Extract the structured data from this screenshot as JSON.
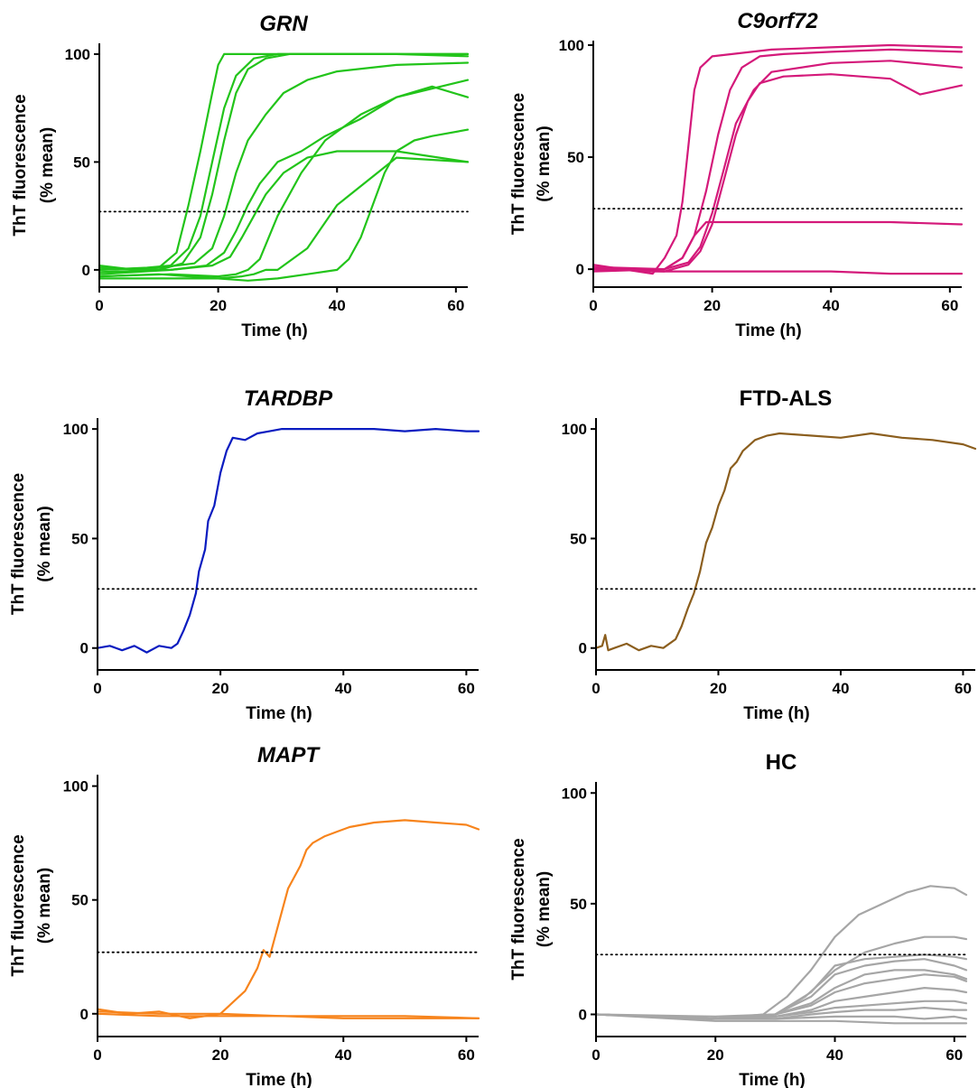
{
  "chart_data": [
    {
      "type": "line",
      "title": "GRN",
      "title_italic": true,
      "xlabel": "Time (h)",
      "ylabel": [
        "ThT fluorescence",
        "(% mean)"
      ],
      "xlim": [
        0,
        62
      ],
      "ylim": [
        -8,
        105
      ],
      "xticks": [
        0,
        20,
        40,
        60
      ],
      "yticks": [
        0,
        50,
        100
      ],
      "threshold": 27,
      "color": "#22c41a",
      "series": [
        {
          "x": [
            0,
            6,
            10,
            13,
            15,
            17,
            19,
            20,
            21,
            24,
            30,
            40,
            50,
            62
          ],
          "y": [
            2,
            0,
            1,
            8,
            30,
            55,
            82,
            95,
            100,
            100,
            100,
            100,
            100,
            100
          ]
        },
        {
          "x": [
            0,
            8,
            12,
            15,
            17,
            19,
            21,
            23,
            26,
            30,
            40,
            50,
            62
          ],
          "y": [
            0,
            1,
            2,
            10,
            25,
            50,
            75,
            90,
            98,
            100,
            100,
            100,
            99
          ]
        },
        {
          "x": [
            0,
            10,
            14,
            17,
            19,
            21,
            23,
            25,
            28,
            32,
            40,
            50,
            62
          ],
          "y": [
            1,
            0,
            3,
            15,
            35,
            60,
            82,
            93,
            98,
            100,
            100,
            100,
            100
          ]
        },
        {
          "x": [
            0,
            10,
            16,
            19,
            21,
            23,
            25,
            28,
            31,
            35,
            40,
            50,
            62
          ],
          "y": [
            0,
            1,
            3,
            10,
            25,
            45,
            60,
            72,
            82,
            88,
            92,
            95,
            96
          ]
        },
        {
          "x": [
            0,
            12,
            18,
            21,
            23,
            25,
            27,
            30,
            34,
            38,
            44,
            50,
            62
          ],
          "y": [
            -2,
            0,
            2,
            8,
            18,
            30,
            40,
            50,
            55,
            62,
            70,
            80,
            88
          ]
        },
        {
          "x": [
            0,
            12,
            19,
            22,
            24,
            26,
            28,
            31,
            35,
            40,
            50,
            62
          ],
          "y": [
            -1,
            0,
            2,
            6,
            15,
            25,
            35,
            45,
            52,
            55,
            55,
            50
          ]
        },
        {
          "x": [
            0,
            12,
            20,
            23,
            25,
            27,
            30,
            34,
            38,
            44,
            50,
            56,
            62
          ],
          "y": [
            -3,
            -2,
            -3,
            -2,
            0,
            5,
            25,
            45,
            60,
            72,
            80,
            85,
            80
          ]
        },
        {
          "x": [
            0,
            10,
            20,
            24,
            26,
            28,
            30,
            35,
            40,
            50,
            62
          ],
          "y": [
            -3,
            -2,
            -4,
            -3,
            -2,
            0,
            0,
            10,
            30,
            52,
            50
          ]
        },
        {
          "x": [
            0,
            20,
            25,
            30,
            35,
            40,
            42,
            44,
            46,
            48,
            50,
            53,
            56,
            62
          ],
          "y": [
            -4,
            -4,
            -5,
            -4,
            -2,
            0,
            5,
            15,
            30,
            45,
            55,
            60,
            62,
            65
          ]
        }
      ]
    },
    {
      "type": "line",
      "title": "C9orf72",
      "title_italic": true,
      "xlabel": "Time (h)",
      "ylabel": [
        "ThT fluorescence",
        "(% mean)"
      ],
      "xlim": [
        0,
        62
      ],
      "ylim": [
        -8,
        102
      ],
      "xticks": [
        0,
        20,
        40,
        60
      ],
      "yticks": [
        0,
        50,
        100
      ],
      "threshold": 27,
      "color": "#d4197a",
      "series": [
        {
          "x": [
            0,
            10,
            12,
            14,
            15,
            16,
            17,
            18,
            20,
            30,
            40,
            50,
            62
          ],
          "y": [
            2,
            -2,
            5,
            15,
            30,
            55,
            80,
            90,
            95,
            98,
            99,
            100,
            99
          ]
        },
        {
          "x": [
            0,
            12,
            15,
            17,
            19,
            21,
            23,
            25,
            28,
            32,
            40,
            50,
            62
          ],
          "y": [
            0,
            0,
            5,
            15,
            35,
            60,
            80,
            90,
            95,
            96,
            97,
            98,
            97
          ]
        },
        {
          "x": [
            0,
            12,
            16,
            18,
            20,
            22,
            24,
            27,
            30,
            40,
            50,
            62
          ],
          "y": [
            -1,
            0,
            3,
            10,
            25,
            45,
            65,
            80,
            88,
            92,
            93,
            90
          ]
        },
        {
          "x": [
            0,
            12,
            16,
            18,
            20,
            22,
            24,
            26,
            28,
            32,
            40,
            50,
            55,
            62
          ],
          "y": [
            0,
            -1,
            2,
            8,
            20,
            40,
            60,
            75,
            83,
            86,
            87,
            85,
            78,
            82
          ]
        },
        {
          "x": [
            0,
            12,
            15,
            17,
            19,
            22,
            30,
            40,
            50,
            62
          ],
          "y": [
            1,
            0,
            5,
            15,
            21,
            21,
            21,
            21,
            21,
            20
          ]
        },
        {
          "x": [
            0,
            10,
            20,
            30,
            40,
            50,
            62
          ],
          "y": [
            1,
            -1,
            -1,
            -1,
            -1,
            -2,
            -2
          ]
        }
      ]
    },
    {
      "type": "line",
      "title": "TARDBP",
      "title_italic": true,
      "xlabel": "Time (h)",
      "ylabel": [
        "ThT fluorescence",
        "(% mean)"
      ],
      "xlim": [
        0,
        62
      ],
      "ylim": [
        -10,
        105
      ],
      "xticks": [
        0,
        20,
        40,
        60
      ],
      "yticks": [
        0,
        50,
        100
      ],
      "threshold": 27,
      "color": "#0a1cc0",
      "series": [
        {
          "x": [
            0,
            2,
            4,
            6,
            8,
            10,
            12,
            13,
            14,
            15,
            16,
            16.5,
            17,
            17.5,
            18,
            19,
            20,
            21,
            22,
            24,
            26,
            28,
            30,
            35,
            40,
            45,
            50,
            55,
            60,
            62
          ],
          "y": [
            0,
            1,
            -1,
            1,
            -2,
            1,
            0,
            2,
            8,
            15,
            25,
            35,
            40,
            45,
            58,
            65,
            80,
            90,
            96,
            95,
            98,
            99,
            100,
            100,
            100,
            100,
            99,
            100,
            99,
            99
          ]
        }
      ]
    },
    {
      "type": "line",
      "title": "FTD-ALS",
      "title_italic": false,
      "xlabel": "Time (h)",
      "ylabel": [
        "",
        ""
      ],
      "xlim": [
        0,
        62
      ],
      "ylim": [
        -10,
        105
      ],
      "xticks": [
        0,
        20,
        40,
        60
      ],
      "yticks": [
        0,
        50,
        100
      ],
      "threshold": 27,
      "color": "#8b5e1e",
      "series": [
        {
          "x": [
            0,
            1,
            1.5,
            2,
            3,
            5,
            7,
            9,
            11,
            13,
            14,
            15,
            16,
            17,
            18,
            19,
            20,
            21,
            22,
            23,
            24,
            26,
            28,
            30,
            35,
            40,
            45,
            50,
            55,
            60,
            62
          ],
          "y": [
            0,
            1,
            6,
            -1,
            0,
            2,
            -1,
            1,
            0,
            4,
            10,
            18,
            25,
            35,
            48,
            55,
            65,
            72,
            82,
            85,
            90,
            95,
            97,
            98,
            97,
            96,
            98,
            96,
            95,
            93,
            91
          ]
        }
      ]
    },
    {
      "type": "line",
      "title": "MAPT",
      "title_italic": true,
      "xlabel": "Time (h)",
      "ylabel": [
        "ThT fluorescence",
        "(% mean)"
      ],
      "xlim": [
        0,
        62
      ],
      "ylim": [
        -10,
        105
      ],
      "xticks": [
        0,
        20,
        40,
        60
      ],
      "yticks": [
        0,
        50,
        100
      ],
      "threshold": 27,
      "color": "#f7841c",
      "series": [
        {
          "x": [
            0,
            5,
            10,
            15,
            20,
            22,
            24,
            26,
            27,
            28,
            29,
            30,
            31,
            32,
            33,
            34,
            35,
            37,
            39,
            41,
            45,
            50,
            55,
            60,
            62
          ],
          "y": [
            2,
            0,
            1,
            -2,
            0,
            5,
            10,
            20,
            28,
            25,
            35,
            45,
            55,
            60,
            65,
            72,
            75,
            78,
            80,
            82,
            84,
            85,
            84,
            83,
            81
          ]
        },
        {
          "x": [
            0,
            10,
            20,
            30,
            40,
            50,
            62
          ],
          "y": [
            0,
            -1,
            -1,
            -1,
            -2,
            -2,
            -2
          ]
        },
        {
          "x": [
            0,
            10,
            20,
            30,
            40,
            50,
            62
          ],
          "y": [
            1,
            0,
            0,
            -1,
            -1,
            -1,
            -2
          ]
        }
      ]
    },
    {
      "type": "line",
      "title": "HC",
      "title_italic": false,
      "xlabel": "Time (h)",
      "ylabel": [
        "ThT fluorescence",
        "(% mean)"
      ],
      "xlim": [
        0,
        62
      ],
      "ylim": [
        -10,
        105
      ],
      "xticks": [
        0,
        20,
        40,
        60
      ],
      "yticks": [
        0,
        50,
        100
      ],
      "threshold": 27,
      "color": "#a6a6a6",
      "series": [
        {
          "x": [
            0,
            20,
            28,
            32,
            36,
            40,
            44,
            48,
            52,
            56,
            60,
            62
          ],
          "y": [
            0,
            -2,
            0,
            8,
            20,
            35,
            45,
            50,
            55,
            58,
            57,
            54
          ]
        },
        {
          "x": [
            0,
            20,
            30,
            35,
            40,
            45,
            50,
            55,
            60,
            62
          ],
          "y": [
            0,
            -2,
            0,
            8,
            20,
            28,
            32,
            35,
            35,
            34
          ]
        },
        {
          "x": [
            0,
            20,
            30,
            36,
            40,
            45,
            50,
            55,
            60,
            62
          ],
          "y": [
            0,
            -2,
            0,
            10,
            22,
            25,
            26,
            27,
            26,
            25
          ]
        },
        {
          "x": [
            0,
            20,
            30,
            36,
            40,
            45,
            50,
            55,
            60,
            62
          ],
          "y": [
            0,
            -2,
            0,
            8,
            18,
            22,
            24,
            25,
            22,
            20
          ]
        },
        {
          "x": [
            0,
            20,
            30,
            36,
            40,
            45,
            50,
            55,
            60,
            62
          ],
          "y": [
            0,
            -1,
            0,
            5,
            12,
            18,
            20,
            20,
            18,
            16
          ]
        },
        {
          "x": [
            0,
            20,
            30,
            36,
            40,
            45,
            50,
            55,
            60,
            62
          ],
          "y": [
            0,
            -2,
            0,
            4,
            10,
            14,
            16,
            18,
            17,
            15
          ]
        },
        {
          "x": [
            0,
            20,
            30,
            36,
            40,
            45,
            50,
            55,
            60,
            62
          ],
          "y": [
            0,
            -2,
            -1,
            2,
            6,
            8,
            10,
            12,
            11,
            10
          ]
        },
        {
          "x": [
            0,
            20,
            30,
            36,
            40,
            45,
            50,
            55,
            60,
            62
          ],
          "y": [
            0,
            -2,
            -1,
            1,
            3,
            4,
            5,
            6,
            6,
            5
          ]
        },
        {
          "x": [
            0,
            20,
            30,
            36,
            40,
            45,
            50,
            55,
            60,
            62
          ],
          "y": [
            0,
            -2,
            -2,
            0,
            1,
            2,
            2,
            3,
            2,
            2
          ]
        },
        {
          "x": [
            0,
            20,
            30,
            40,
            50,
            55,
            60,
            62
          ],
          "y": [
            0,
            -2,
            -2,
            -1,
            -1,
            -2,
            -1,
            -2
          ]
        },
        {
          "x": [
            0,
            20,
            30,
            40,
            50,
            62
          ],
          "y": [
            0,
            -3,
            -3,
            -3,
            -4,
            -4
          ]
        }
      ]
    }
  ]
}
